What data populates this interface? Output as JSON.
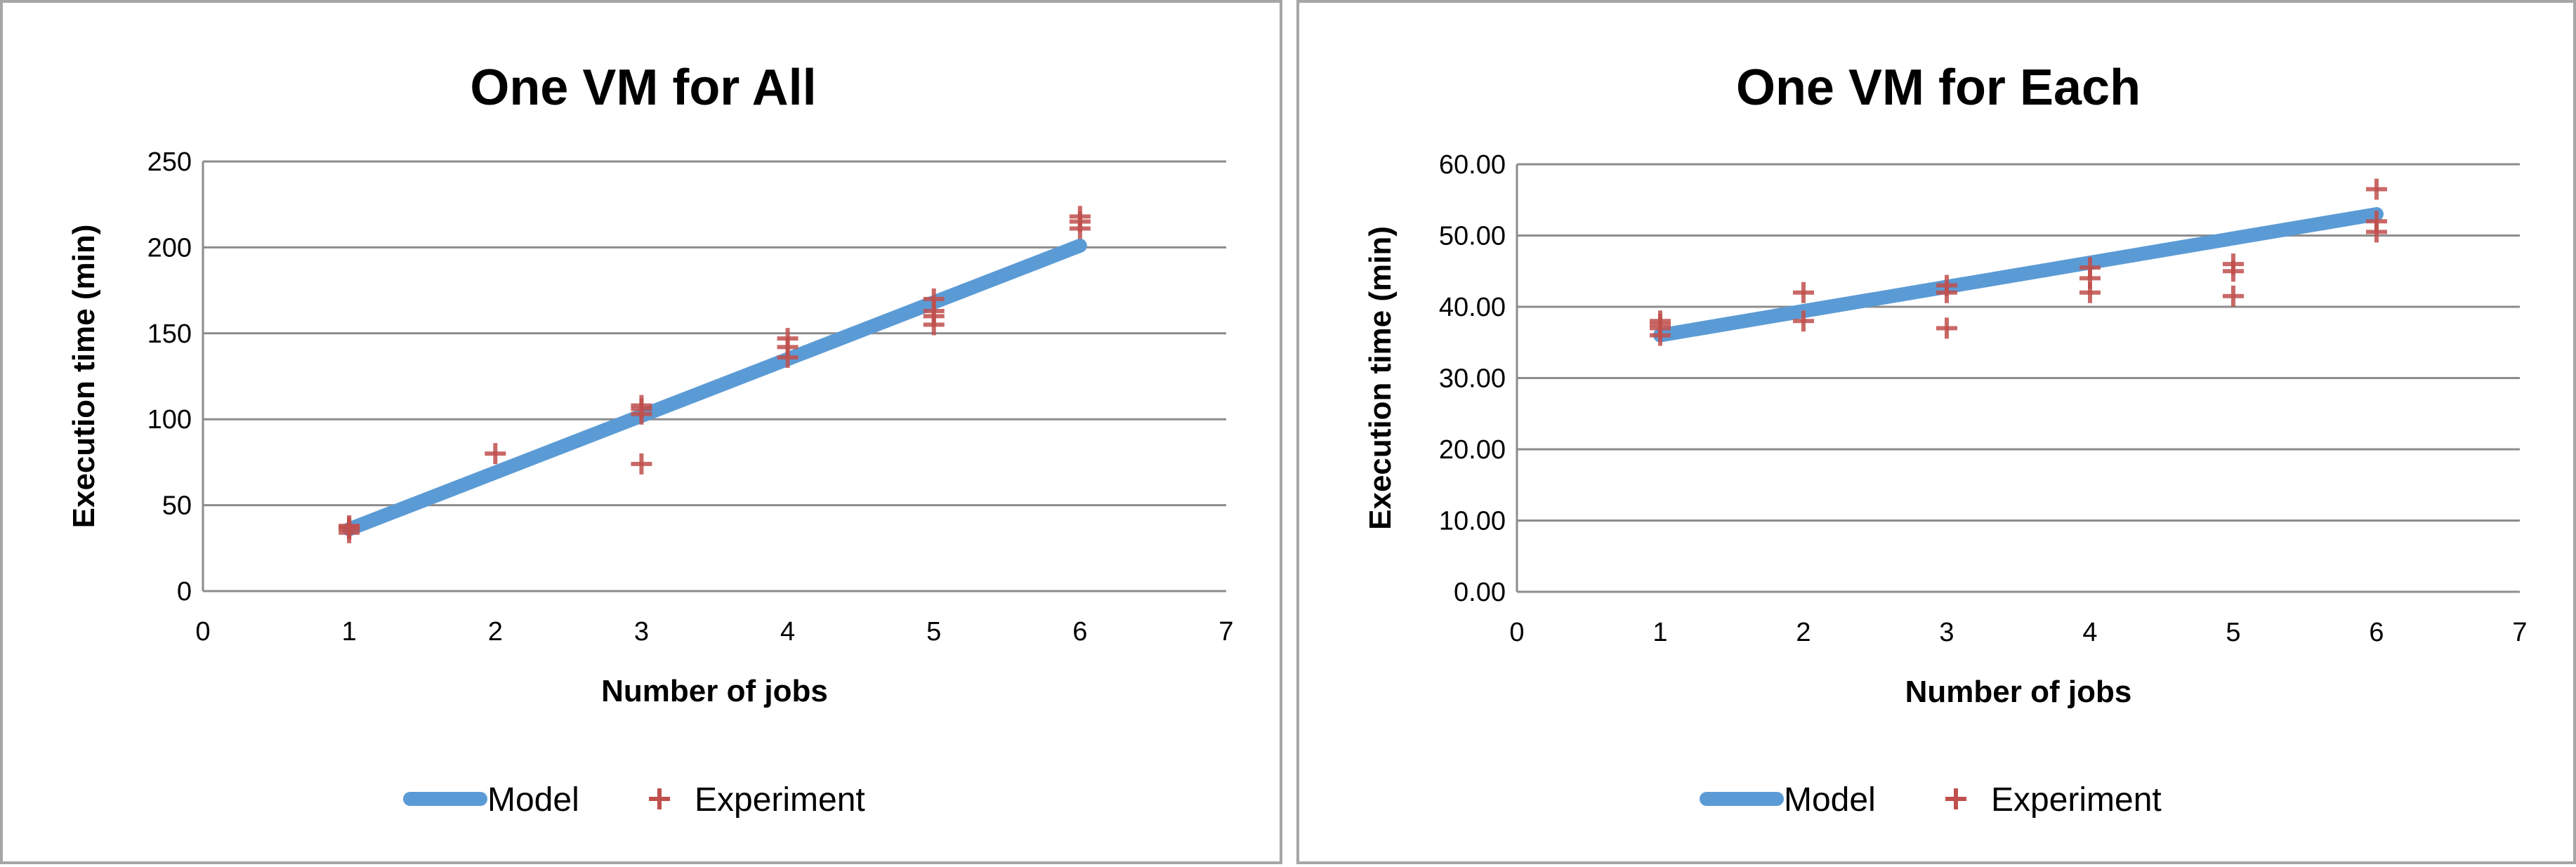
{
  "chart_data": [
    {
      "type": "scatter",
      "title": "One VM for All",
      "xlabel": "Number of jobs",
      "ylabel": "Execution time (min)",
      "xlim": [
        0,
        7
      ],
      "ylim": [
        0,
        250
      ],
      "x_ticks": [
        "0",
        "1",
        "2",
        "3",
        "4",
        "5",
        "6",
        "7"
      ],
      "y_ticks": [
        "0",
        "50",
        "100",
        "150",
        "200",
        "250"
      ],
      "grid": true,
      "legend_position": "bottom",
      "series": [
        {
          "name": "Model",
          "kind": "line",
          "color": "#5b9bd5",
          "x": [
            1,
            6
          ],
          "y": [
            36,
            201
          ]
        },
        {
          "name": "Experiment",
          "kind": "scatter",
          "color": "#c0504d",
          "x": [
            1,
            1,
            1,
            1,
            2,
            3,
            3,
            3,
            3,
            4,
            4,
            4,
            5,
            5,
            5,
            5,
            6,
            6,
            6
          ],
          "y": [
            34,
            36,
            37,
            38,
            80,
            74,
            103,
            106,
            108,
            136,
            142,
            147,
            155,
            160,
            163,
            170,
            211,
            215,
            218
          ]
        }
      ]
    },
    {
      "type": "scatter",
      "title": "One VM for Each",
      "xlabel": "Number of jobs",
      "ylabel": "Execution time (min)",
      "xlim": [
        0,
        7
      ],
      "ylim": [
        0,
        60
      ],
      "x_ticks": [
        "0",
        "1",
        "2",
        "3",
        "4",
        "5",
        "6",
        "7"
      ],
      "y_ticks": [
        "0.00",
        "10.00",
        "20.00",
        "30.00",
        "40.00",
        "50.00",
        "60.00"
      ],
      "grid": true,
      "legend_position": "bottom",
      "series": [
        {
          "name": "Model",
          "kind": "line",
          "color": "#5b9bd5",
          "x": [
            1,
            6
          ],
          "y": [
            36,
            53
          ]
        },
        {
          "name": "Experiment",
          "kind": "scatter",
          "color": "#c0504d",
          "x": [
            1,
            1,
            1,
            1,
            2,
            2,
            3,
            3,
            3,
            4,
            4,
            4,
            5,
            5,
            5,
            6,
            6,
            6
          ],
          "y": [
            36,
            37,
            37.5,
            38,
            38,
            42,
            37,
            42,
            43,
            42,
            44,
            45.5,
            41.5,
            45,
            46,
            50.5,
            52,
            56.5
          ]
        }
      ]
    }
  ]
}
